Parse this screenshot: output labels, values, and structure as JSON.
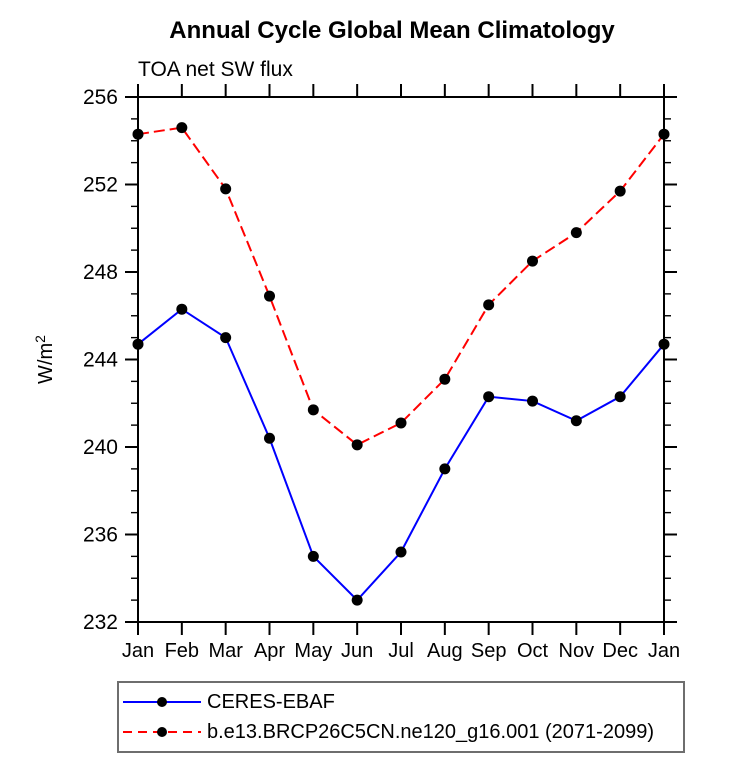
{
  "chart_data": {
    "type": "line",
    "title": "Annual Cycle Global Mean Climatology",
    "subtitle": "TOA net SW flux",
    "ylabel": "W/m²",
    "ylabel_base": "W/m",
    "ylabel_exponent": "2",
    "xlabel": "",
    "categories": [
      "Jan",
      "Feb",
      "Mar",
      "Apr",
      "May",
      "Jun",
      "Jul",
      "Aug",
      "Sep",
      "Oct",
      "Nov",
      "Dec",
      "Jan"
    ],
    "series": [
      {
        "name": "CERES-EBAF",
        "color": "#0000ff",
        "line_style": "solid",
        "marker": "circle",
        "marker_color": "#000000",
        "values": [
          244.7,
          246.3,
          245.0,
          240.4,
          235.0,
          233.0,
          235.2,
          239.0,
          242.3,
          242.1,
          241.2,
          242.3,
          244.7
        ]
      },
      {
        "name": "b.e13.BRCP26C5CN.ne120_g16.001 (2071-2099)",
        "color": "#ff0000",
        "line_style": "dashed",
        "marker": "circle",
        "marker_color": "#000000",
        "values": [
          254.3,
          254.6,
          251.8,
          246.9,
          241.7,
          240.1,
          241.1,
          243.1,
          246.5,
          248.5,
          249.8,
          251.7,
          254.3
        ]
      }
    ],
    "ylim": [
      232,
      256
    ],
    "y_major_ticks": [
      232,
      236,
      240,
      244,
      248,
      252,
      256
    ],
    "ytick_major_step": 4,
    "ytick_minor_step": 1,
    "grid": false,
    "legend_position": "bottom-left",
    "axis_color": "#000000",
    "background_color": "#ffffff"
  }
}
